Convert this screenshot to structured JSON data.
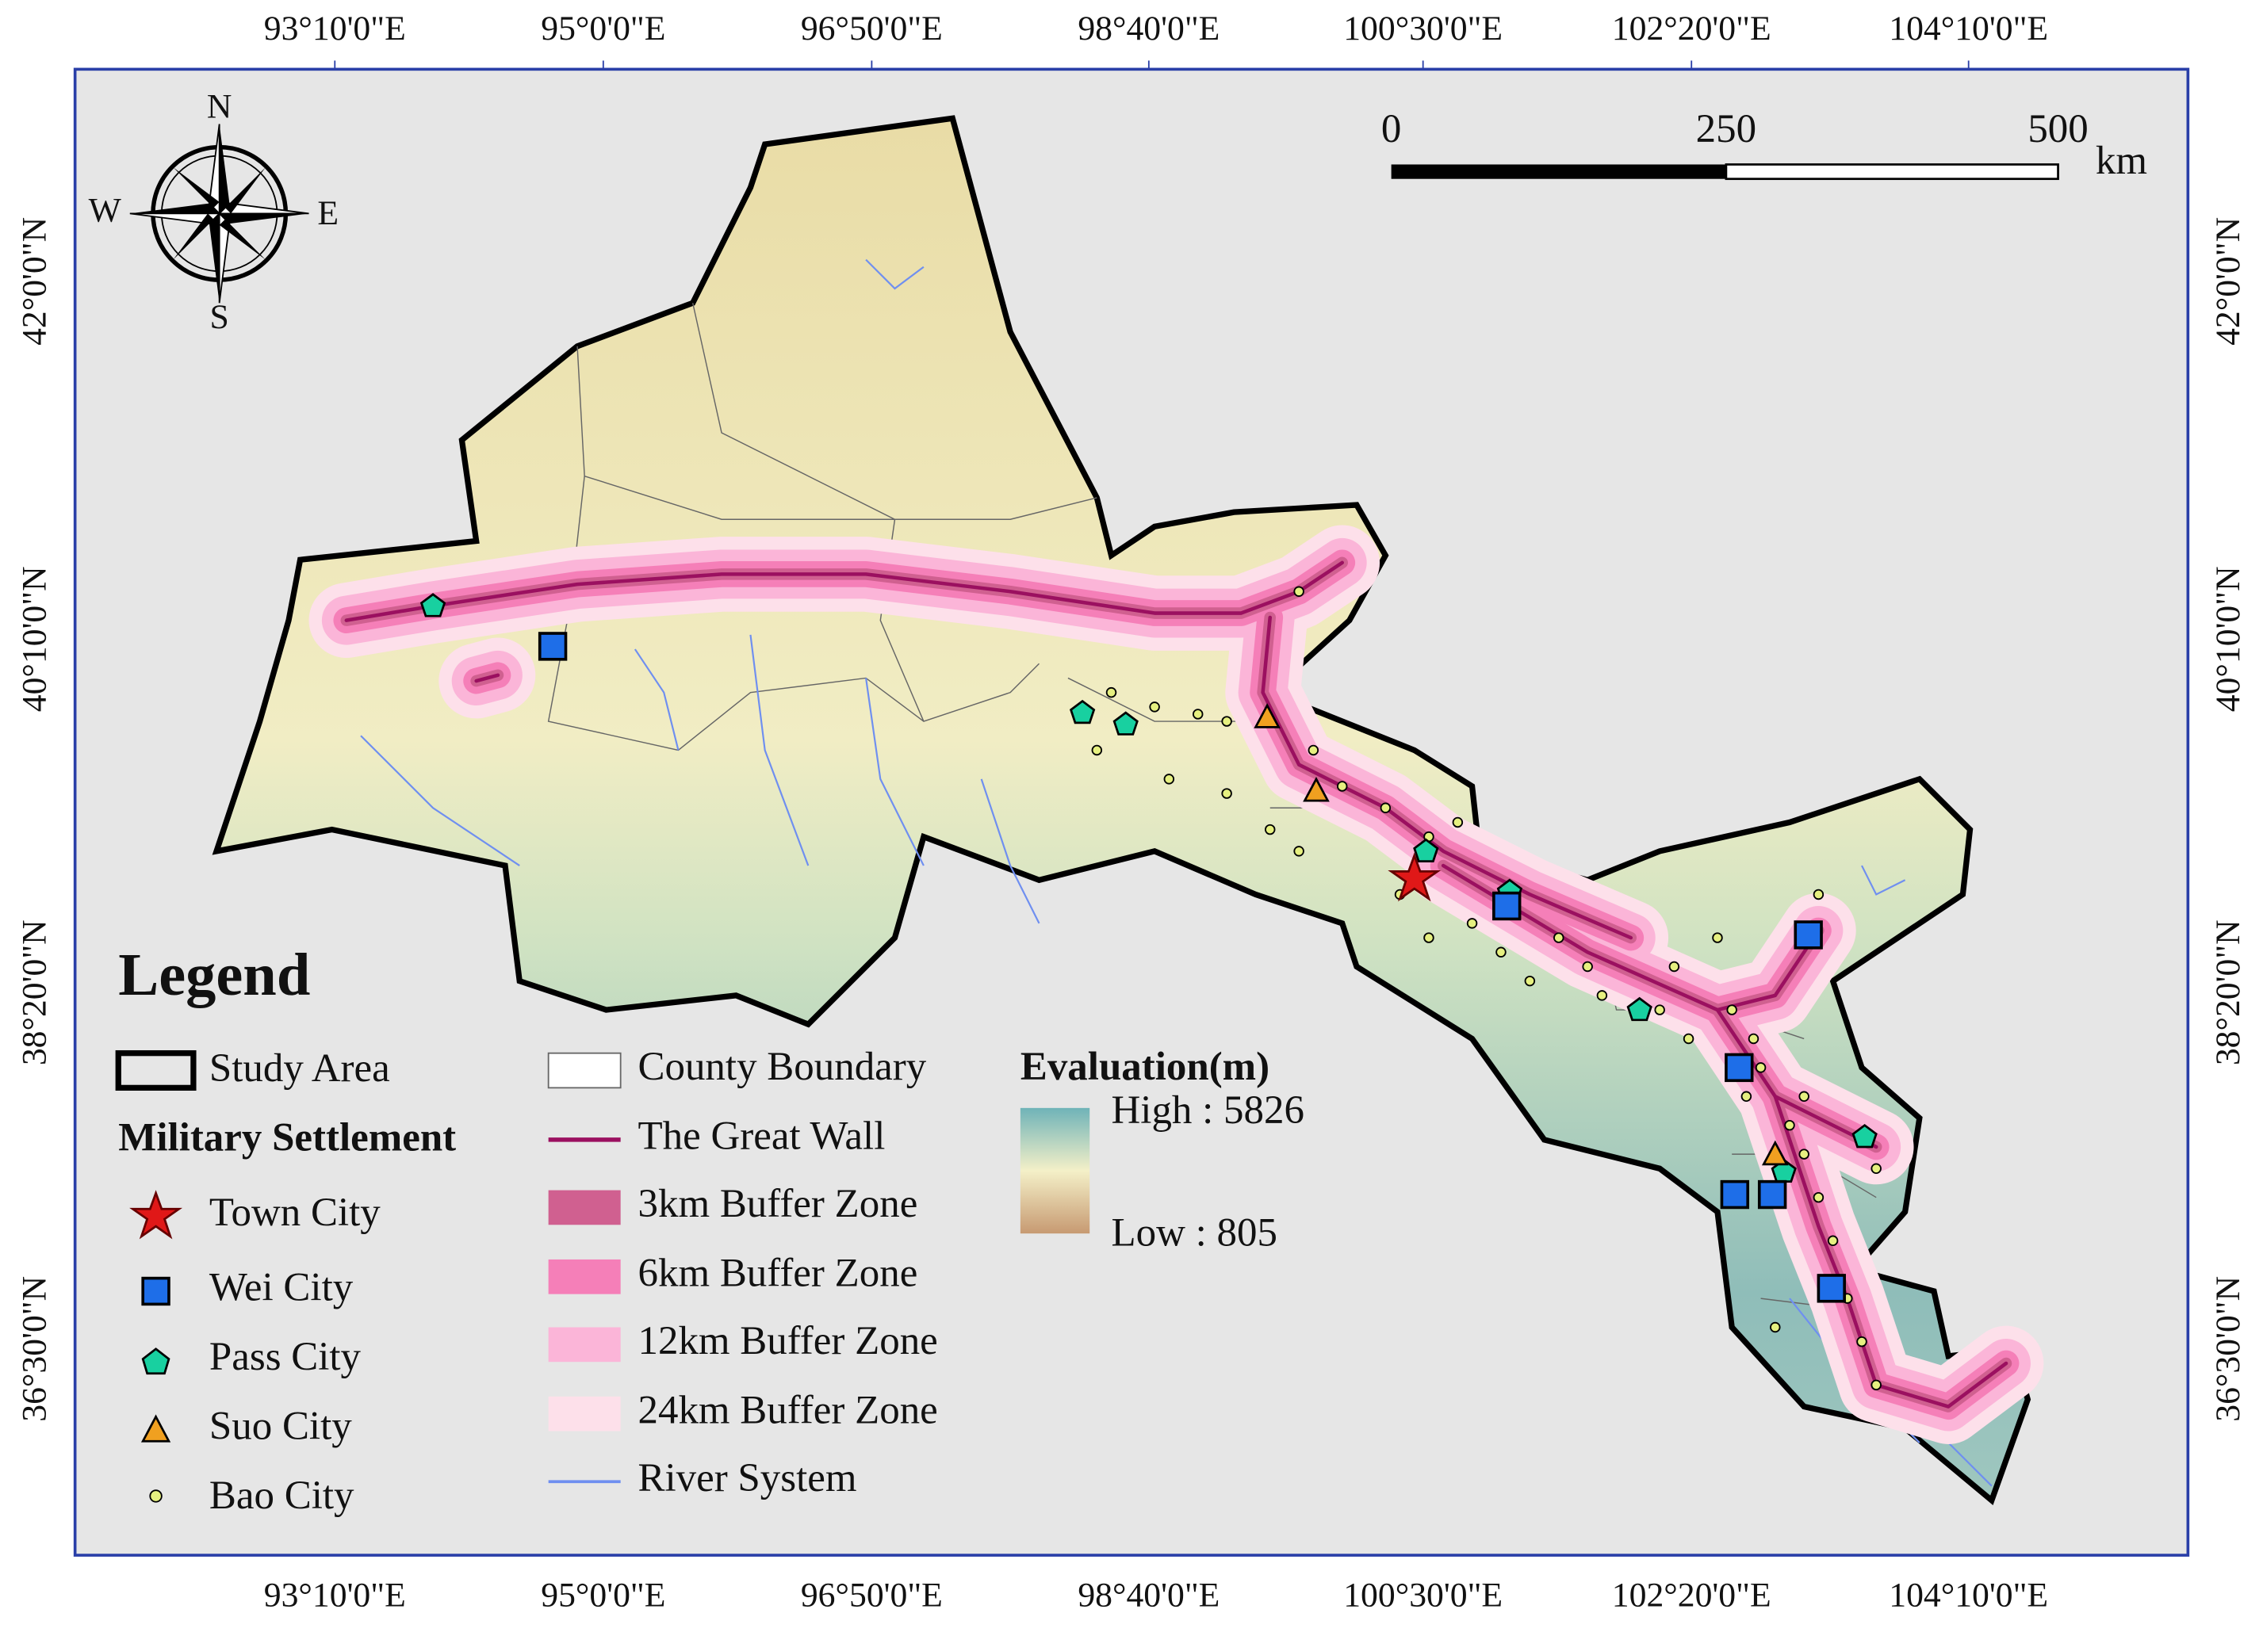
{
  "longitude_labels": [
    "93°10'0\"E",
    "95°0'0\"E",
    "96°50'0\"E",
    "98°40'0\"E",
    "100°30'0\"E",
    "102°20'0\"E",
    "104°10'0\"E"
  ],
  "latitude_labels": [
    "42°0'0\"N",
    "40°10'0\"N",
    "38°20'0\"N",
    "36°30'0\"N"
  ],
  "compass": {
    "north": "N",
    "south": "S",
    "east": "E",
    "west": "W"
  },
  "scale_bar": {
    "labels": [
      0,
      250,
      500
    ],
    "unit": "km"
  },
  "legend": {
    "title": "Legend",
    "study_area": "Study Area",
    "military_settlement": {
      "heading": "Military Settlement",
      "items": [
        "Town City",
        "Wei City",
        "Pass City",
        "Suo City",
        "Bao City"
      ]
    },
    "layers": [
      "County Boundary",
      "The Great Wall",
      "3km Buffer Zone",
      "6km Buffer Zone",
      "12km Buffer Zone",
      "24km Buffer Zone",
      "River System"
    ],
    "evaluation": {
      "title": "Evaluation(m)",
      "high": "High : 5826",
      "low": "Low : 805"
    }
  }
}
